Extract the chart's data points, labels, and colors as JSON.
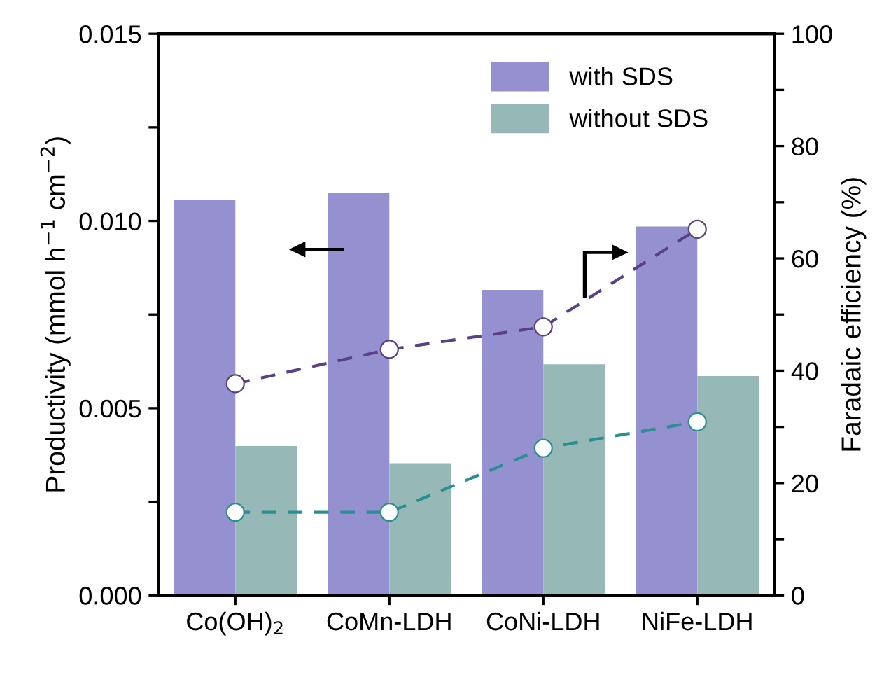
{
  "chart_data": {
    "type": "bar",
    "categories": [
      "Co(OH)$_{2}$",
      "CoMn-LDH",
      "CoNi-LDH",
      "NiFe-LDH"
    ],
    "ylabel": "Productivity (mmol h$^{−1}$ cm$^{−2}$)",
    "y2label": "Faradaic efficiency (%)",
    "series": [
      {
        "name": "with SDS",
        "color": "#9590cf",
        "values": [
          0.01057,
          0.01076,
          0.00816,
          0.00985
        ]
      },
      {
        "name": "without SDS",
        "color": "#96b9b7",
        "values": [
          0.00399,
          0.00353,
          0.00617,
          0.00586
        ]
      },
      {
        "type": "line",
        "axis": "y2",
        "color": "#5a4186",
        "line_style": "dashed",
        "marker": "circle",
        "values": [
          37.7,
          43.8,
          47.8,
          65.2
        ]
      },
      {
        "type": "line",
        "axis": "y2",
        "color": "#2a8e94",
        "line_style": "dashed",
        "marker": "circle",
        "values": [
          14.8,
          14.8,
          26.2,
          30.9
        ]
      }
    ],
    "ylim": [
      0,
      0.015
    ],
    "yticks": [
      {
        "value": 0,
        "label": "0.000"
      },
      {
        "value": 0.0025,
        "label": null
      },
      {
        "value": 0.005,
        "label": "0.005"
      },
      {
        "value": 0.0075,
        "label": null
      },
      {
        "value": 0.01,
        "label": "0.010"
      },
      {
        "value": 0.0125,
        "label": null
      },
      {
        "value": 0.015,
        "label": "0.015"
      }
    ],
    "y2lim": [
      0,
      100
    ],
    "y2ticks": [
      0,
      {
        "value": 10,
        "label": null
      },
      20,
      {
        "value": 30,
        "label": null
      },
      40,
      {
        "value": 50,
        "label": null
      },
      60,
      {
        "value": 70,
        "label": null
      },
      80,
      {
        "value": 90,
        "label": null
      },
      100
    ],
    "grid": false,
    "legend": "top right"
  }
}
